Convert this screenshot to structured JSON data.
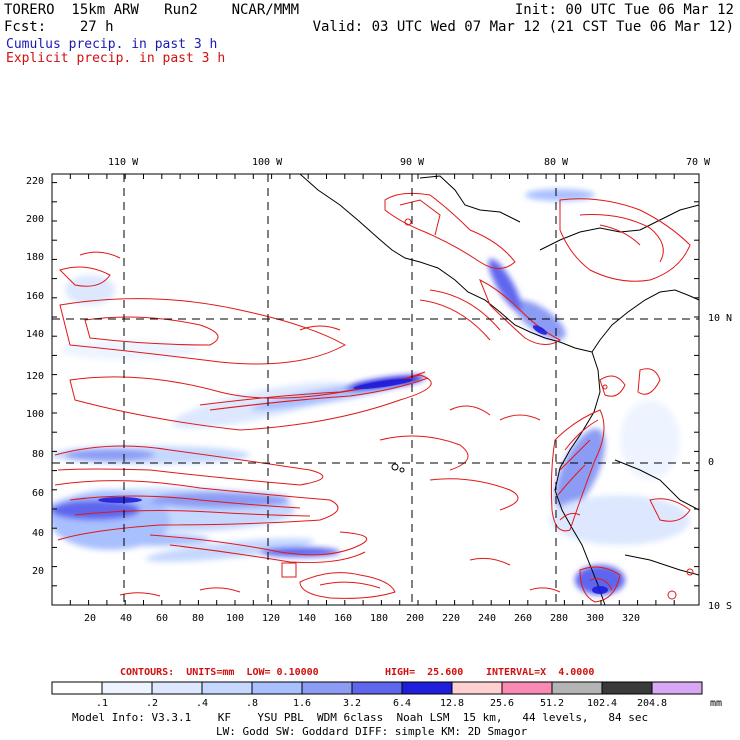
{
  "header": {
    "line1_left": "TORERO  15km ARW   Run2    NCAR/MMM",
    "line1_right": "Init: 00 UTC Tue 06 Mar 12",
    "line2_left": "Fcst:    27 h",
    "line2_right": "Valid: 03 UTC Wed 07 Mar 12 (21 CST Tue 06 Mar 12)",
    "legend_cumulus": "Cumulus precip. in past 3 h",
    "legend_explicit": "Explicit precip. in past 3 h"
  },
  "map": {
    "lon_labels": [
      "110 W",
      "100 W",
      "90 W",
      "80 W",
      "70 W"
    ],
    "lat_labels": [
      "10 N",
      "0",
      "10 S"
    ],
    "y_ticks": [
      "220",
      "200",
      "180",
      "160",
      "140",
      "120",
      "100",
      "80",
      "60",
      "40",
      "20"
    ],
    "x_ticks": [
      "20",
      "40",
      "60",
      "80",
      "100",
      "120",
      "140",
      "160",
      "180",
      "200",
      "220",
      "240",
      "260",
      "280",
      "300",
      "320"
    ]
  },
  "contour_info": {
    "contours": "CONTOURS:  UNITS=mm  LOW= 0.10000",
    "high": "HIGH=  25.600",
    "interval": "INTERVAL=X  4.0000"
  },
  "colorbar": {
    "labels": [
      ".1",
      ".2",
      ".4",
      ".8",
      "1.6",
      "3.2",
      "6.4",
      "12.8",
      "25.6",
      "51.2",
      "102.4",
      "204.8"
    ],
    "unit": "mm",
    "colors": [
      "#ffffff",
      "#eef4ff",
      "#dde8ff",
      "#c6d8ff",
      "#a9c0ff",
      "#8c9cf4",
      "#5e66ee",
      "#1e1edc",
      "#ffd0d0",
      "#f88ab4",
      "#b4b4b4",
      "#3a3a3a",
      "#d8a8f4"
    ]
  },
  "model_info": {
    "line1": "Model Info: V3.3.1    KF    YSU PBL  WDM 6class  Noah LSM  15 km,   44 levels,   84 sec",
    "line2": "LW: Godd SW: Goddard DIFF: simple KM: 2D Smagor"
  }
}
